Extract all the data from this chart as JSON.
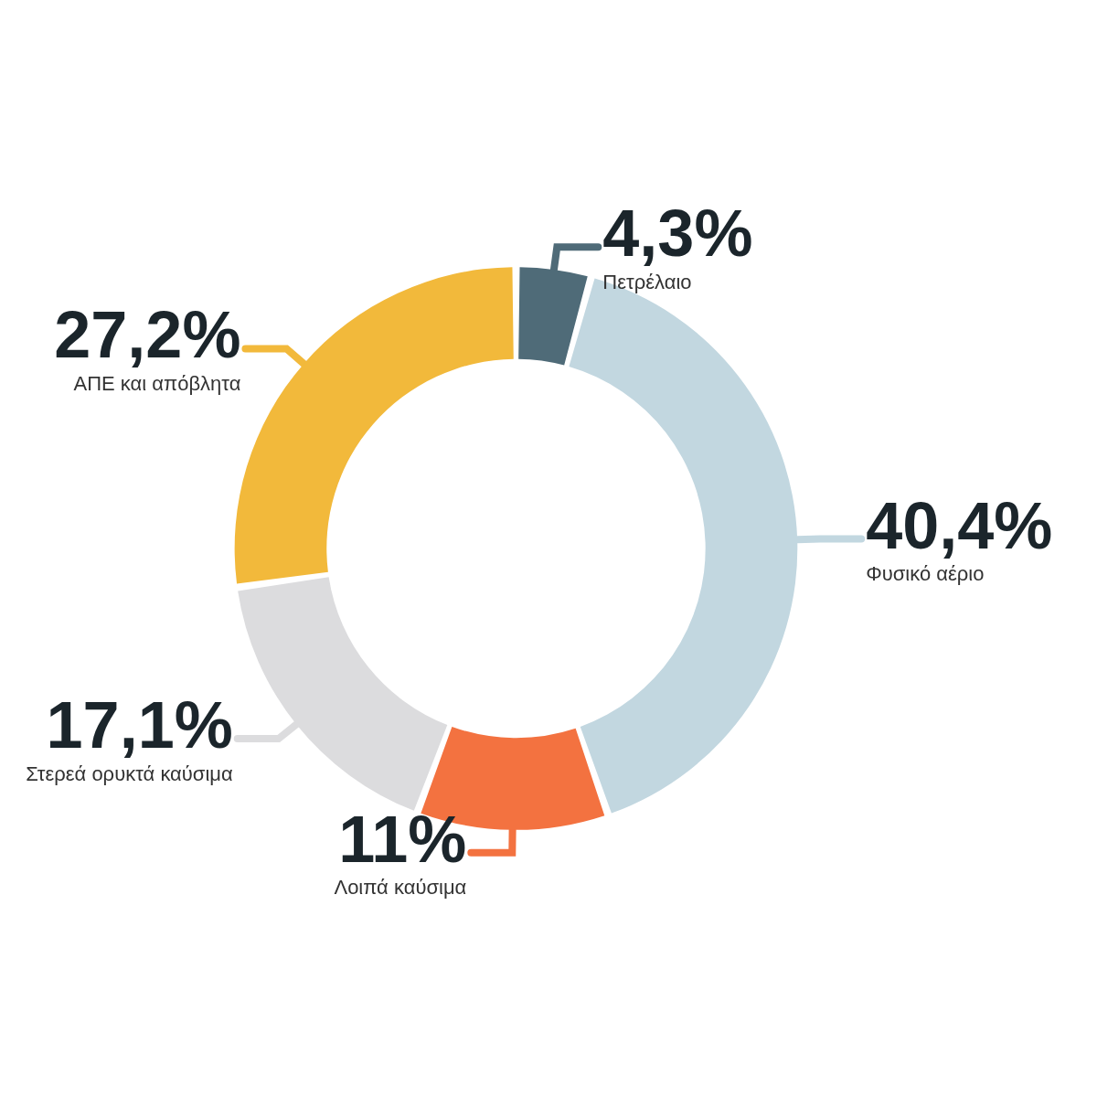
{
  "chart_data": {
    "type": "donut",
    "categories": [
      "Πετρέλαιο",
      "Φυσικό αέριο",
      "Λοιπά καύσιμα",
      "Στερεά ορυκτά καύσιμα",
      "ΑΠΕ και απόβλητα"
    ],
    "values": [
      4.3,
      40.4,
      11,
      17.1,
      27.2
    ],
    "value_labels": [
      "4,3%",
      "40,4%",
      "11%",
      "17,1%",
      "27,2%"
    ],
    "colors": [
      "#4f6b78",
      "#c2d7e0",
      "#f37240",
      "#dcdcde",
      "#f2b93b"
    ],
    "legend": false
  }
}
